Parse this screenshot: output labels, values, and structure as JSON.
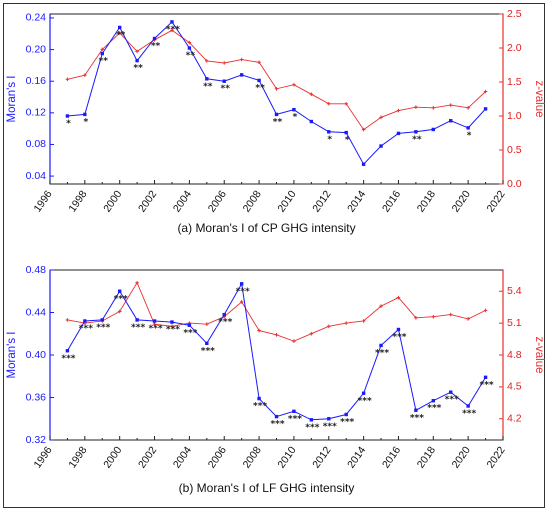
{
  "chart_data": [
    {
      "type": "line",
      "caption": "(a) Moran's I of CP GHG intensity",
      "ylabel": "Moran's I",
      "y2label": "z-value",
      "xlim": [
        1996,
        2022
      ],
      "ylim": [
        0.03,
        0.245
      ],
      "y2lim": [
        0,
        2.5
      ],
      "xticks": [
        "1996",
        "1998",
        "2000",
        "2002",
        "2004",
        "2006",
        "2008",
        "2010",
        "2012",
        "2014",
        "2016",
        "2018",
        "2020",
        "2022"
      ],
      "yticks": [
        "0.04",
        "0.08",
        "0.12",
        "0.16",
        "0.20",
        "0.24"
      ],
      "y2ticks": [
        "0.0",
        "0.5",
        "1.0",
        "1.5",
        "2.0",
        "2.5"
      ],
      "x": [
        1997,
        1998,
        1999,
        2000,
        2001,
        2002,
        2003,
        2004,
        2005,
        2006,
        2007,
        2008,
        2009,
        2010,
        2011,
        2012,
        2013,
        2014,
        2015,
        2016,
        2017,
        2018,
        2019,
        2020,
        2021
      ],
      "series": [
        {
          "axis": "left",
          "color": "#1a1aff",
          "values": [
            0.116,
            0.118,
            0.195,
            0.228,
            0.186,
            0.214,
            0.235,
            0.202,
            0.163,
            0.16,
            0.168,
            0.161,
            0.118,
            0.124,
            0.109,
            0.096,
            0.095,
            0.055,
            0.078,
            0.094,
            0.096,
            0.099,
            0.11,
            0.101,
            0.125
          ]
        },
        {
          "axis": "right",
          "color": "#e83030",
          "values": [
            1.54,
            1.6,
            1.98,
            2.22,
            1.95,
            2.12,
            2.26,
            2.08,
            1.81,
            1.78,
            1.83,
            1.79,
            1.4,
            1.46,
            1.32,
            1.18,
            1.18,
            0.8,
            0.98,
            1.08,
            1.13,
            1.12,
            1.16,
            1.12,
            1.36
          ]
        }
      ],
      "stars": [
        "*",
        "*",
        "**",
        "**",
        "**",
        "**",
        "***",
        "**",
        "**",
        "**",
        "",
        "**",
        "**",
        "*",
        "",
        "*",
        "*",
        "",
        "",
        "",
        "**",
        "",
        "",
        "*",
        ""
      ]
    },
    {
      "type": "line",
      "caption": "(b) Moran's I of LF GHG intensity",
      "ylabel": "Moran's I",
      "y2label": "z-value",
      "xlim": [
        1996,
        2022
      ],
      "ylim": [
        0.32,
        0.48
      ],
      "y2lim": [
        4.0,
        5.6
      ],
      "xticks": [
        "1996",
        "1998",
        "2000",
        "2002",
        "2004",
        "2006",
        "2008",
        "2010",
        "2012",
        "2014",
        "2016",
        "2018",
        "2020",
        "2022"
      ],
      "yticks": [
        "0.32",
        "0.36",
        "0.40",
        "0.44",
        "0.48"
      ],
      "y2ticks": [
        "4.2",
        "4.5",
        "4.8",
        "5.1",
        "5.4"
      ],
      "x": [
        1997,
        1998,
        1999,
        2000,
        2001,
        2002,
        2003,
        2004,
        2005,
        2006,
        2007,
        2008,
        2009,
        2010,
        2011,
        2012,
        2013,
        2014,
        2015,
        2016,
        2017,
        2018,
        2019,
        2020,
        2021
      ],
      "series": [
        {
          "axis": "left",
          "color": "#1a1aff",
          "values": [
            0.404,
            0.432,
            0.433,
            0.46,
            0.433,
            0.432,
            0.431,
            0.428,
            0.411,
            0.438,
            0.467,
            0.359,
            0.342,
            0.347,
            0.339,
            0.34,
            0.344,
            0.364,
            0.409,
            0.424,
            0.348,
            0.357,
            0.365,
            0.352,
            0.379
          ]
        },
        {
          "axis": "right",
          "color": "#e83030",
          "values": [
            5.13,
            5.1,
            5.12,
            5.21,
            5.48,
            5.09,
            5.07,
            5.1,
            5.09,
            5.16,
            5.3,
            5.03,
            4.99,
            4.93,
            5.0,
            5.07,
            5.1,
            5.12,
            5.26,
            5.34,
            5.15,
            5.16,
            5.18,
            5.14,
            5.22
          ]
        }
      ],
      "stars": [
        "***",
        "***",
        "***",
        "***",
        "***",
        "***",
        "***",
        "***",
        "***",
        "***",
        "***",
        "***",
        "***",
        "***",
        "***",
        "***",
        "***",
        "***",
        "***",
        "***",
        "***",
        "***",
        "***",
        "***",
        "***"
      ]
    }
  ]
}
